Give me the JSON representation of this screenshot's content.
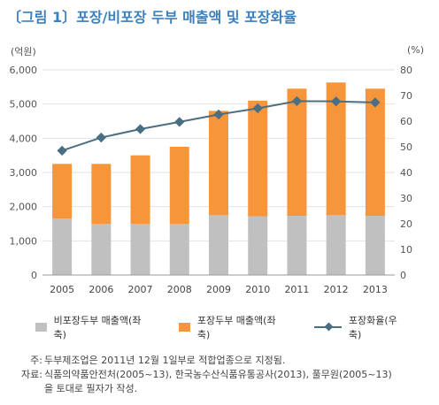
{
  "chart_data": {
    "type": "bar",
    "title": "〔그림 1〕포장/비포장 두부 매출액 및 포장화율",
    "left_unit": "(억원)",
    "right_unit": "(%)",
    "categories": [
      "2005",
      "2006",
      "2007",
      "2008",
      "2009",
      "2010",
      "2011",
      "2012",
      "2013"
    ],
    "series": [
      {
        "name": "비포장두부 매출액(좌축)",
        "type": "bar",
        "stack": "sales",
        "axis": "left",
        "color": "#c0c0c0",
        "values": [
          1650,
          1500,
          1500,
          1500,
          1750,
          1720,
          1730,
          1750,
          1730
        ]
      },
      {
        "name": "포장두부 매출액(좌축)",
        "type": "bar",
        "stack": "sales",
        "axis": "left",
        "color": "#f7953b",
        "values": [
          1600,
          1750,
          2000,
          2250,
          3050,
          3380,
          3720,
          3880,
          3720
        ]
      },
      {
        "name": "포장화율(우축)",
        "type": "line",
        "axis": "right",
        "color": "#4a6f83",
        "values": [
          48.5,
          53.6,
          56.9,
          59.7,
          62.6,
          65.0,
          67.8,
          67.7,
          67.3
        ]
      }
    ],
    "y_left": {
      "min": 0,
      "max": 6000,
      "ticks": [
        "0",
        "1,000",
        "2,000",
        "3,000",
        "4,000",
        "5,000",
        "6,000"
      ]
    },
    "y_right": {
      "min": 0,
      "max": 80,
      "ticks": [
        "0",
        "10",
        "20",
        "30",
        "40",
        "50",
        "60",
        "70",
        "80"
      ]
    },
    "grid": true,
    "legend_position": "bottom"
  },
  "notes": [
    {
      "label": "주:",
      "text": "두부제조업은 2011년 12월 1일부로 적합업종으로 지정됨."
    },
    {
      "label": "자료:",
      "text": "식품의약품안전처(2005~13), 한국농수산식품유통공사(2013), 풀무원(2005~13)"
    },
    {
      "label": "",
      "text": "을 토대로 필자가 작성."
    }
  ]
}
